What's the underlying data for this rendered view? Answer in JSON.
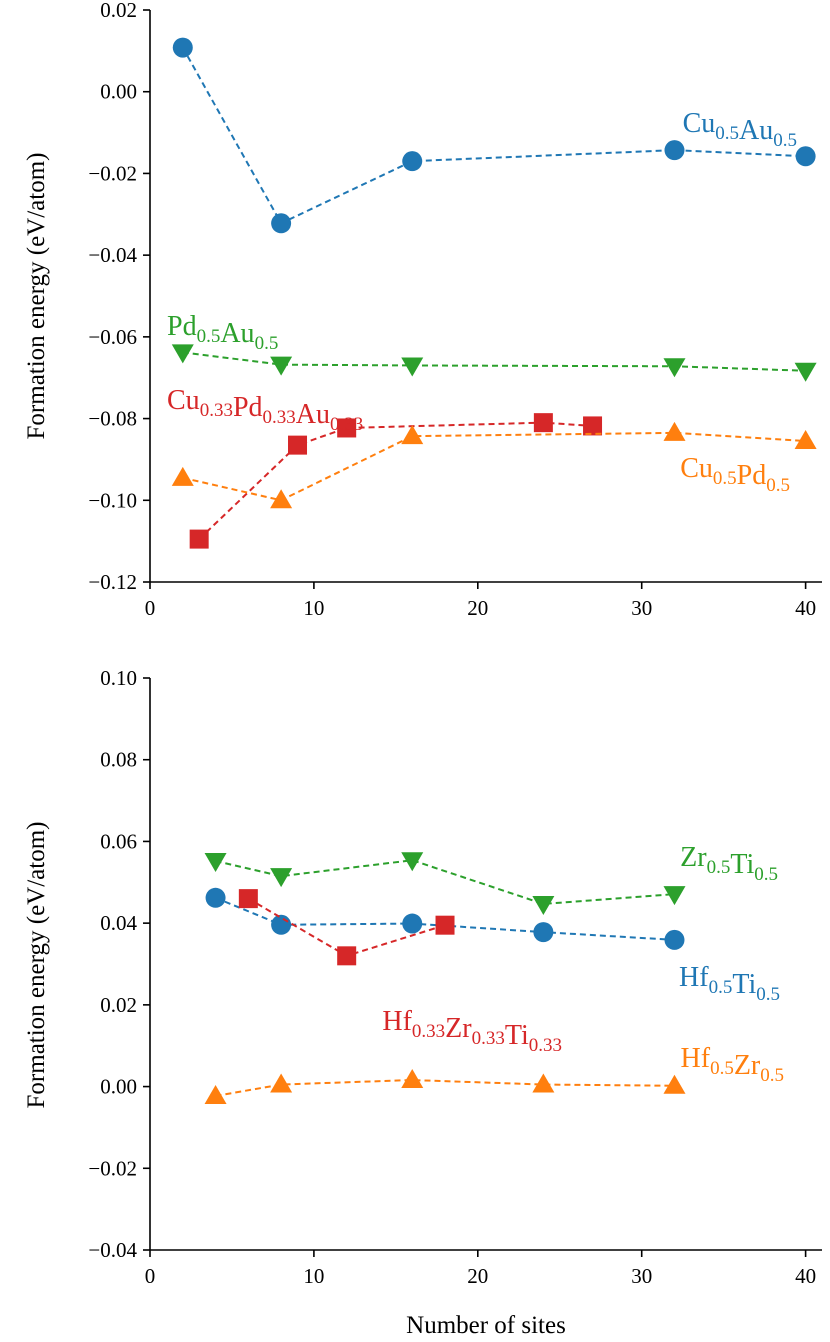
{
  "chart_data": [
    {
      "type": "line",
      "xlabel": "",
      "ylabel": "Formation energy (eV/atom)",
      "xlim": [
        0,
        41
      ],
      "ylim": [
        -0.12,
        0.02
      ],
      "xticks": [
        0,
        10,
        20,
        30,
        40
      ],
      "yticks": [
        -0.12,
        -0.1,
        -0.08,
        -0.06,
        -0.04,
        -0.02,
        0.0,
        0.02
      ],
      "xtick_labels": [
        "0",
        "10",
        "20",
        "30",
        "40"
      ],
      "ytick_labels": [
        "−0.12",
        "−0.10",
        "−0.08",
        "−0.06",
        "−0.04",
        "−0.02",
        "0.00",
        "0.02"
      ],
      "series": [
        {
          "name": "Cu0.5Au0.5",
          "label": [
            [
              "Cu",
              "0.5"
            ],
            [
              "Au",
              "0.5"
            ]
          ],
          "color": "#1f77b4",
          "marker": "circle",
          "x": [
            2,
            8,
            16,
            32,
            40
          ],
          "y": [
            0.0108,
            -0.0322,
            -0.017,
            -0.0143,
            -0.0158
          ]
        },
        {
          "name": "Pd0.5Au0.5",
          "label": [
            [
              "Pd",
              "0.5"
            ],
            [
              "Au",
              "0.5"
            ]
          ],
          "color": "#2ca02c",
          "marker": "triangle-down",
          "x": [
            2,
            8,
            16,
            32,
            40
          ],
          "y": [
            -0.0638,
            -0.0668,
            -0.067,
            -0.0672,
            -0.0683
          ]
        },
        {
          "name": "Cu0.33Pd0.33Au0.33",
          "label": [
            [
              "Cu",
              "0.33"
            ],
            [
              "Pd",
              "0.33"
            ],
            [
              "Au",
              "0.33"
            ]
          ],
          "color": "#d62728",
          "marker": "square",
          "x": [
            3,
            9,
            12,
            24,
            27
          ],
          "y": [
            -0.1095,
            -0.0865,
            -0.0823,
            -0.081,
            -0.0818
          ]
        },
        {
          "name": "Cu0.5Pd0.5",
          "label": [
            [
              "Cu",
              "0.5"
            ],
            [
              "Pd",
              "0.5"
            ]
          ],
          "color": "#ff7f0e",
          "marker": "triangle-up",
          "x": [
            2,
            8,
            16,
            32,
            40
          ],
          "y": [
            -0.0945,
            -0.1,
            -0.0843,
            -0.0835,
            -0.0855
          ]
        }
      ]
    },
    {
      "type": "line",
      "xlabel": "Number of sites",
      "ylabel": "Formation energy (eV/atom)",
      "xlim": [
        0,
        41
      ],
      "ylim": [
        -0.04,
        0.1
      ],
      "xticks": [
        0,
        10,
        20,
        30,
        40
      ],
      "yticks": [
        -0.04,
        -0.02,
        0.0,
        0.02,
        0.04,
        0.06,
        0.08,
        0.1
      ],
      "xtick_labels": [
        "0",
        "10",
        "20",
        "30",
        "40"
      ],
      "ytick_labels": [
        "−0.04",
        "−0.02",
        "0.00",
        "0.02",
        "0.04",
        "0.06",
        "0.08",
        "0.10"
      ],
      "series": [
        {
          "name": "Zr0.5Ti0.5",
          "label": [
            [
              "Zr",
              "0.5"
            ],
            [
              "Ti",
              "0.5"
            ]
          ],
          "color": "#2ca02c",
          "marker": "triangle-down",
          "x": [
            4,
            8,
            16,
            24,
            32
          ],
          "y": [
            0.0552,
            0.0515,
            0.0554,
            0.0447,
            0.0471
          ]
        },
        {
          "name": "Hf0.5Ti0.5",
          "label": [
            [
              "Hf",
              "0.5"
            ],
            [
              "Ti",
              "0.5"
            ]
          ],
          "color": "#1f77b4",
          "marker": "circle",
          "x": [
            4,
            8,
            16,
            24,
            32
          ],
          "y": [
            0.0462,
            0.0396,
            0.0399,
            0.0378,
            0.0359
          ]
        },
        {
          "name": "Hf0.33Zr0.33Ti0.33",
          "label": [
            [
              "Hf",
              "0.33"
            ],
            [
              "Zr",
              "0.33"
            ],
            [
              "Ti",
              "0.33"
            ]
          ],
          "color": "#d62728",
          "marker": "square",
          "x": [
            6,
            12,
            18
          ],
          "y": [
            0.046,
            0.032,
            0.0395
          ]
        },
        {
          "name": "Hf0.5Zr0.5",
          "label": [
            [
              "Hf",
              "0.5"
            ],
            [
              "Zr",
              "0.5"
            ]
          ],
          "color": "#ff7f0e",
          "marker": "triangle-up",
          "x": [
            4,
            8,
            16,
            24,
            32
          ],
          "y": [
            -0.0023,
            0.0005,
            0.0016,
            0.0005,
            0.0002
          ]
        }
      ]
    }
  ]
}
